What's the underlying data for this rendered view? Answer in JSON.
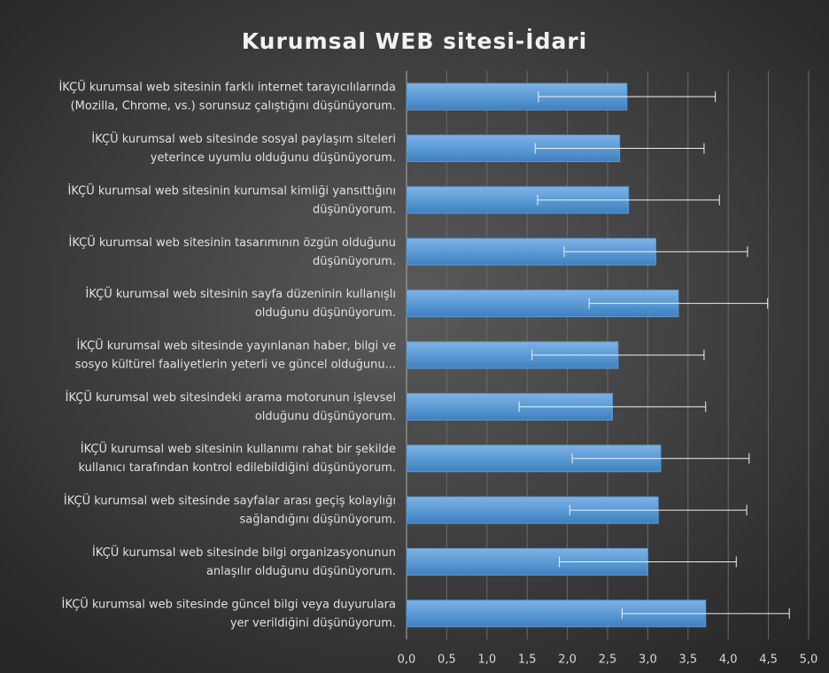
{
  "chart_data": {
    "type": "bar",
    "orientation": "horizontal",
    "title": "Kurumsal WEB sitesi-İdari",
    "categories": [
      "İKÇÜ kurumsal web sitesinin farklı internet tarayıcılılarında\n(Mozilla, Chrome, vs.) sorunsuz çalıştığını düşünüyorum.",
      "İKÇÜ kurumsal web sitesinde sosyal paylaşım siteleri\nyeterince uyumlu olduğunu düşünüyorum.",
      "İKÇÜ kurumsal web sitesinin kurumsal kimliği yansıttığını\ndüşünüyorum.",
      "İKÇÜ kurumsal web sitesinin tasarımının özgün olduğunu\ndüşünüyorum.",
      "İKÇÜ kurumsal web sitesinin sayfa düzeninin kullanışlı\nolduğunu düşünüyorum.",
      "İKÇÜ kurumsal web sitesinde yayınlanan haber, bilgi ve\nsosyo kültürel faaliyetlerin yeterli ve güncel olduğunu...",
      "İKÇÜ kurumsal web sitesindeki arama motorunun işlevsel\nolduğunu düşünüyorum.",
      "İKÇÜ kurumsal web sitesinin kullanımı rahat bir şekilde\nkullanıcı tarafından kontrol edilebildiğini düşünüyorum.",
      "İKÇÜ kurumsal web sitesinde sayfalar arası geçiş kolaylığı\nsağlandığını düşünüyorum.",
      "İKÇÜ kurumsal web sitesinde bilgi organizasyonunun\nanlaşılır olduğunu düşünüyorum.",
      "İKÇÜ kurumsal web sitesinde güncel bilgi veya duyurulara\nyer verildiğini düşünüyorum."
    ],
    "values": [
      2.74,
      2.65,
      2.76,
      3.1,
      3.38,
      2.63,
      2.56,
      3.16,
      3.13,
      3.0,
      3.72
    ],
    "errors": [
      1.1,
      1.05,
      1.13,
      1.14,
      1.11,
      1.07,
      1.16,
      1.1,
      1.1,
      1.1,
      1.04
    ],
    "color": "#5b9bd5",
    "xlim": [
      0,
      5
    ],
    "xticks": [
      {
        "value": 0,
        "label": "0,0"
      },
      {
        "value": 0.5,
        "label": "0,5"
      },
      {
        "value": 1,
        "label": "1,0"
      },
      {
        "value": 1.5,
        "label": "1,5"
      },
      {
        "value": 2,
        "label": "2,0"
      },
      {
        "value": 2.5,
        "label": "2,5"
      },
      {
        "value": 3,
        "label": "3,0"
      },
      {
        "value": 3.5,
        "label": "3,5"
      },
      {
        "value": 4,
        "label": "4,0"
      },
      {
        "value": 4.5,
        "label": "4,5"
      },
      {
        "value": 5,
        "label": "5,0"
      }
    ],
    "grid": true
  }
}
